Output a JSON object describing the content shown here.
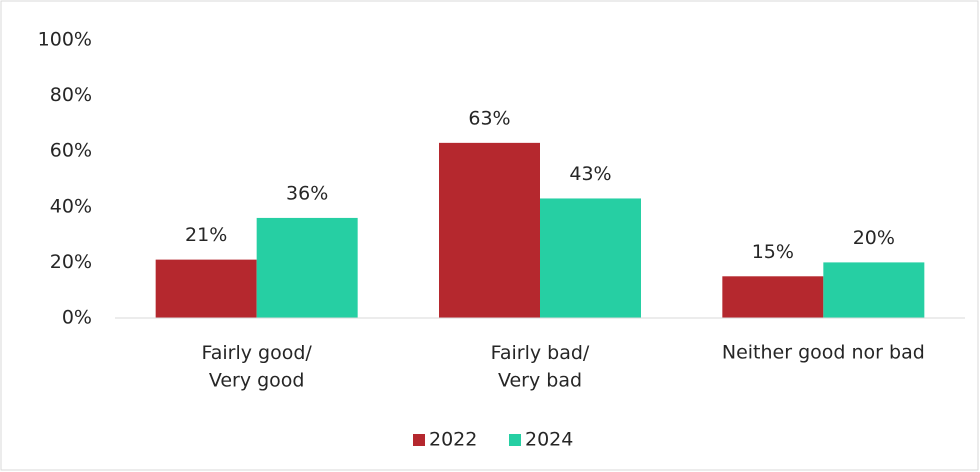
{
  "chart_data": {
    "type": "bar",
    "categories": [
      "Fairly good/\nVery good",
      "Fairly bad/\nVery bad",
      "Neither good nor bad"
    ],
    "series": [
      {
        "name": "2022",
        "color": "#b5282e",
        "values": [
          21,
          63,
          15
        ],
        "value_labels": [
          "21%",
          "63%",
          "15%"
        ]
      },
      {
        "name": "2024",
        "color": "#26cfa3",
        "values": [
          36,
          43,
          20
        ],
        "value_labels": [
          "36%",
          "43%",
          "20%"
        ]
      }
    ],
    "ylim": [
      0,
      100
    ],
    "yticks": [
      {
        "value": 0,
        "label": "0%"
      },
      {
        "value": 20,
        "label": "20%"
      },
      {
        "value": 40,
        "label": "40%"
      },
      {
        "value": 60,
        "label": "60%"
      },
      {
        "value": 80,
        "label": "80%"
      },
      {
        "value": 100,
        "label": "100%"
      }
    ],
    "grid": false,
    "legend": "bottom"
  }
}
